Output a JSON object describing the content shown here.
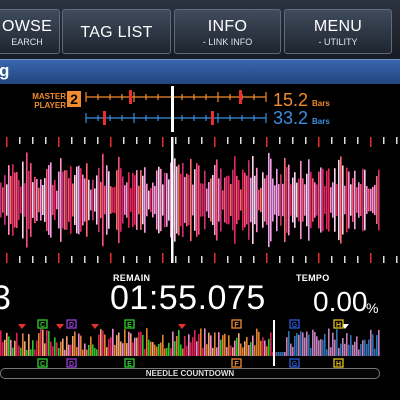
{
  "topbar": {
    "buttons": [
      {
        "label": "OWSE",
        "sub": "EARCH"
      },
      {
        "label": "TAG LIST",
        "sub": ""
      },
      {
        "label": "INFO",
        "sub": "- LINK INFO"
      },
      {
        "label": "MENU",
        "sub": "- UTILITY"
      }
    ]
  },
  "track": {
    "title_fragment": "g"
  },
  "master": {
    "label_line1": "MASTER",
    "label_line2": "PLAYER",
    "player_number": "2",
    "bars_master": "15.2",
    "bars_master_unit": "Bars",
    "bars_self": "33.2",
    "bars_self_unit": "Bars"
  },
  "display": {
    "remain_label": "REMAIN",
    "remain_time": "01:55.075",
    "tempo_label": "TEMPO",
    "tempo_value": "0.00",
    "tempo_unit": "%",
    "left_partial_digit": "3",
    "needle_label": "NEEDLE COUNTDOWN"
  },
  "hot_cues": [
    {
      "letter": "C",
      "color": "#2fd12f"
    },
    {
      "letter": "D",
      "color": "#9b3bd6"
    },
    {
      "letter": "E",
      "color": "#2fd12f"
    },
    {
      "letter": "F",
      "color": "#f08a2c"
    },
    {
      "letter": "G",
      "color": "#2a5bd8"
    },
    {
      "letter": "H",
      "color": "#e8c41a"
    }
  ],
  "colors": {
    "accent_orange": "#f08a2c",
    "accent_blue": "#3a8fe0",
    "waveform_red": "#e8245a",
    "waveform_pink": "#ff8fd0",
    "title_bar": "#2b559a"
  }
}
